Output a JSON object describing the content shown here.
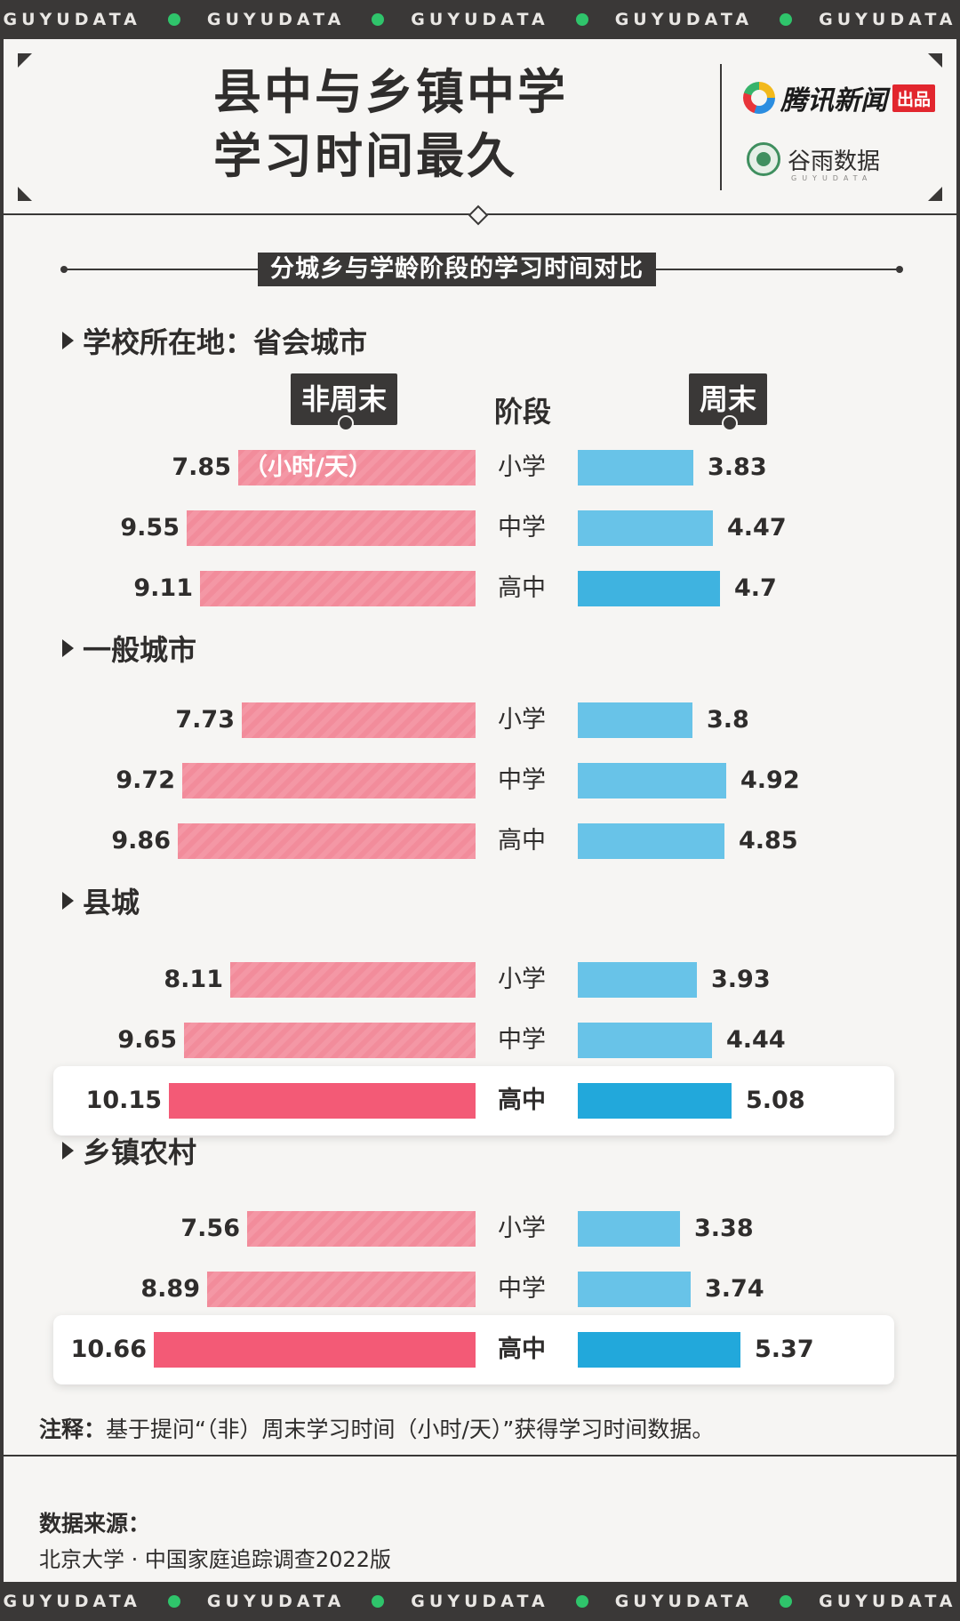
{
  "ticker": [
    "GUYUDATA",
    "GUYUDATA",
    "GUYUDATA",
    "GUYUDATA",
    "GUYUDATA"
  ],
  "header": {
    "title_line1": "县中与乡镇中学",
    "title_line2": "学习时间最久",
    "brand1_name": "腾讯新闻",
    "brand1_tag": "出品",
    "brand2_name": "谷雨数据",
    "brand2_sub": "GUYUDATA"
  },
  "subtitle": "分城乡与学龄阶段的学习时间对比",
  "column_headers": {
    "weekday": "非周末",
    "stage": "阶段",
    "weekend": "周末"
  },
  "unit_label": "（小时/天）",
  "chart_data": {
    "type": "bar",
    "title": "分城乡与学龄阶段的学习时间对比",
    "unit": "（小时/天）",
    "series_names": [
      "非周末",
      "周末"
    ],
    "groups": [
      {
        "name": "学校所在地：省会城市",
        "rows": [
          {
            "stage": "小学",
            "weekday": 7.85,
            "weekend": 3.83
          },
          {
            "stage": "中学",
            "weekday": 9.55,
            "weekend": 4.47
          },
          {
            "stage": "高中",
            "weekday": 9.11,
            "weekend": 4.7
          }
        ]
      },
      {
        "name": "一般城市",
        "rows": [
          {
            "stage": "小学",
            "weekday": 7.73,
            "weekend": 3.8
          },
          {
            "stage": "中学",
            "weekday": 9.72,
            "weekend": 4.92
          },
          {
            "stage": "高中",
            "weekday": 9.86,
            "weekend": 4.85
          }
        ]
      },
      {
        "name": "县城",
        "rows": [
          {
            "stage": "小学",
            "weekday": 8.11,
            "weekend": 3.93
          },
          {
            "stage": "中学",
            "weekday": 9.65,
            "weekend": 4.44
          },
          {
            "stage": "高中",
            "weekday": 10.15,
            "weekend": 5.08,
            "highlight": true
          }
        ]
      },
      {
        "name": "乡镇农村",
        "rows": [
          {
            "stage": "小学",
            "weekday": 7.56,
            "weekend": 3.38
          },
          {
            "stage": "中学",
            "weekday": 8.89,
            "weekend": 3.74
          },
          {
            "stage": "高中",
            "weekday": 10.66,
            "weekend": 5.37,
            "highlight": true
          }
        ]
      }
    ]
  },
  "colors": {
    "weekday": "#f28c9b",
    "weekday_highlight": "#f35a76",
    "weekend": "#68c3e8",
    "weekend_highlight": "#22a8db"
  },
  "note": {
    "label": "注释：",
    "text": "基于提问“（非）周末学习时间（小时/天）”获得学习时间数据。"
  },
  "source": {
    "label": "数据来源：",
    "text": "北京大学 · 中国家庭追踪调查2022版"
  }
}
